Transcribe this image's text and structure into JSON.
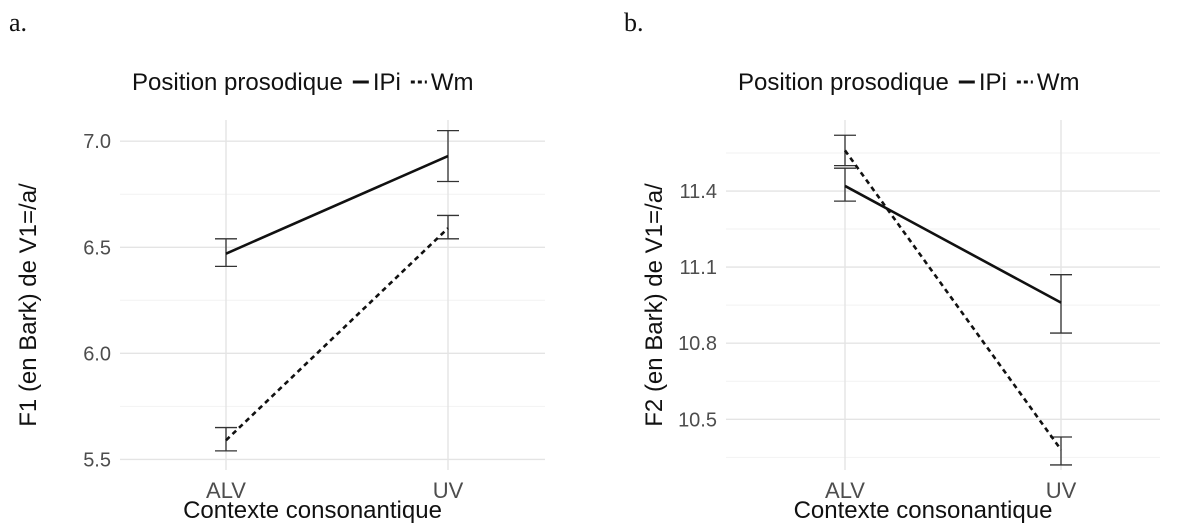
{
  "panels": {
    "a": {
      "letter": "a."
    },
    "b": {
      "letter": "b."
    }
  },
  "chart_data": [
    {
      "type": "line",
      "legend": {
        "title": "Position prosodique",
        "placement": "top"
      },
      "xlabel": "Contexte consonantique",
      "ylabel": "F1 (en Bark) de V1=/a/",
      "categories": [
        "ALV",
        "UV"
      ],
      "ylim": [
        5.45,
        7.1
      ],
      "yticks": [
        5.5,
        6.0,
        6.5,
        7.0
      ],
      "ytick_labels": [
        "5.5",
        "6.0",
        "6.5",
        "7.0"
      ],
      "grid": true,
      "series": [
        {
          "name": "IPi",
          "style": "solid",
          "values": [
            6.47,
            6.93
          ],
          "lower": [
            6.41,
            6.81
          ],
          "upper": [
            6.54,
            7.05
          ]
        },
        {
          "name": "Wm",
          "style": "dashed",
          "values": [
            5.59,
            6.59
          ],
          "lower": [
            5.54,
            6.54
          ],
          "upper": [
            5.65,
            6.65
          ]
        }
      ]
    },
    {
      "type": "line",
      "legend": {
        "title": "Position prosodique",
        "placement": "top"
      },
      "xlabel": "Contexte consonantique",
      "ylabel": "F2 (en Bark) de V1=/a/",
      "categories": [
        "ALV",
        "UV"
      ],
      "ylim": [
        10.3,
        11.68
      ],
      "yticks": [
        10.5,
        10.8,
        11.1,
        11.4
      ],
      "ytick_labels": [
        "10.5",
        "10.8",
        "11.1",
        "11.4"
      ],
      "grid": true,
      "series": [
        {
          "name": "IPi",
          "style": "solid",
          "values": [
            11.42,
            10.96
          ],
          "lower": [
            11.36,
            10.84
          ],
          "upper": [
            11.49,
            11.07
          ]
        },
        {
          "name": "Wm",
          "style": "dashed",
          "values": [
            11.56,
            10.38
          ],
          "lower": [
            11.5,
            10.32
          ],
          "upper": [
            11.62,
            10.43
          ]
        }
      ]
    }
  ]
}
